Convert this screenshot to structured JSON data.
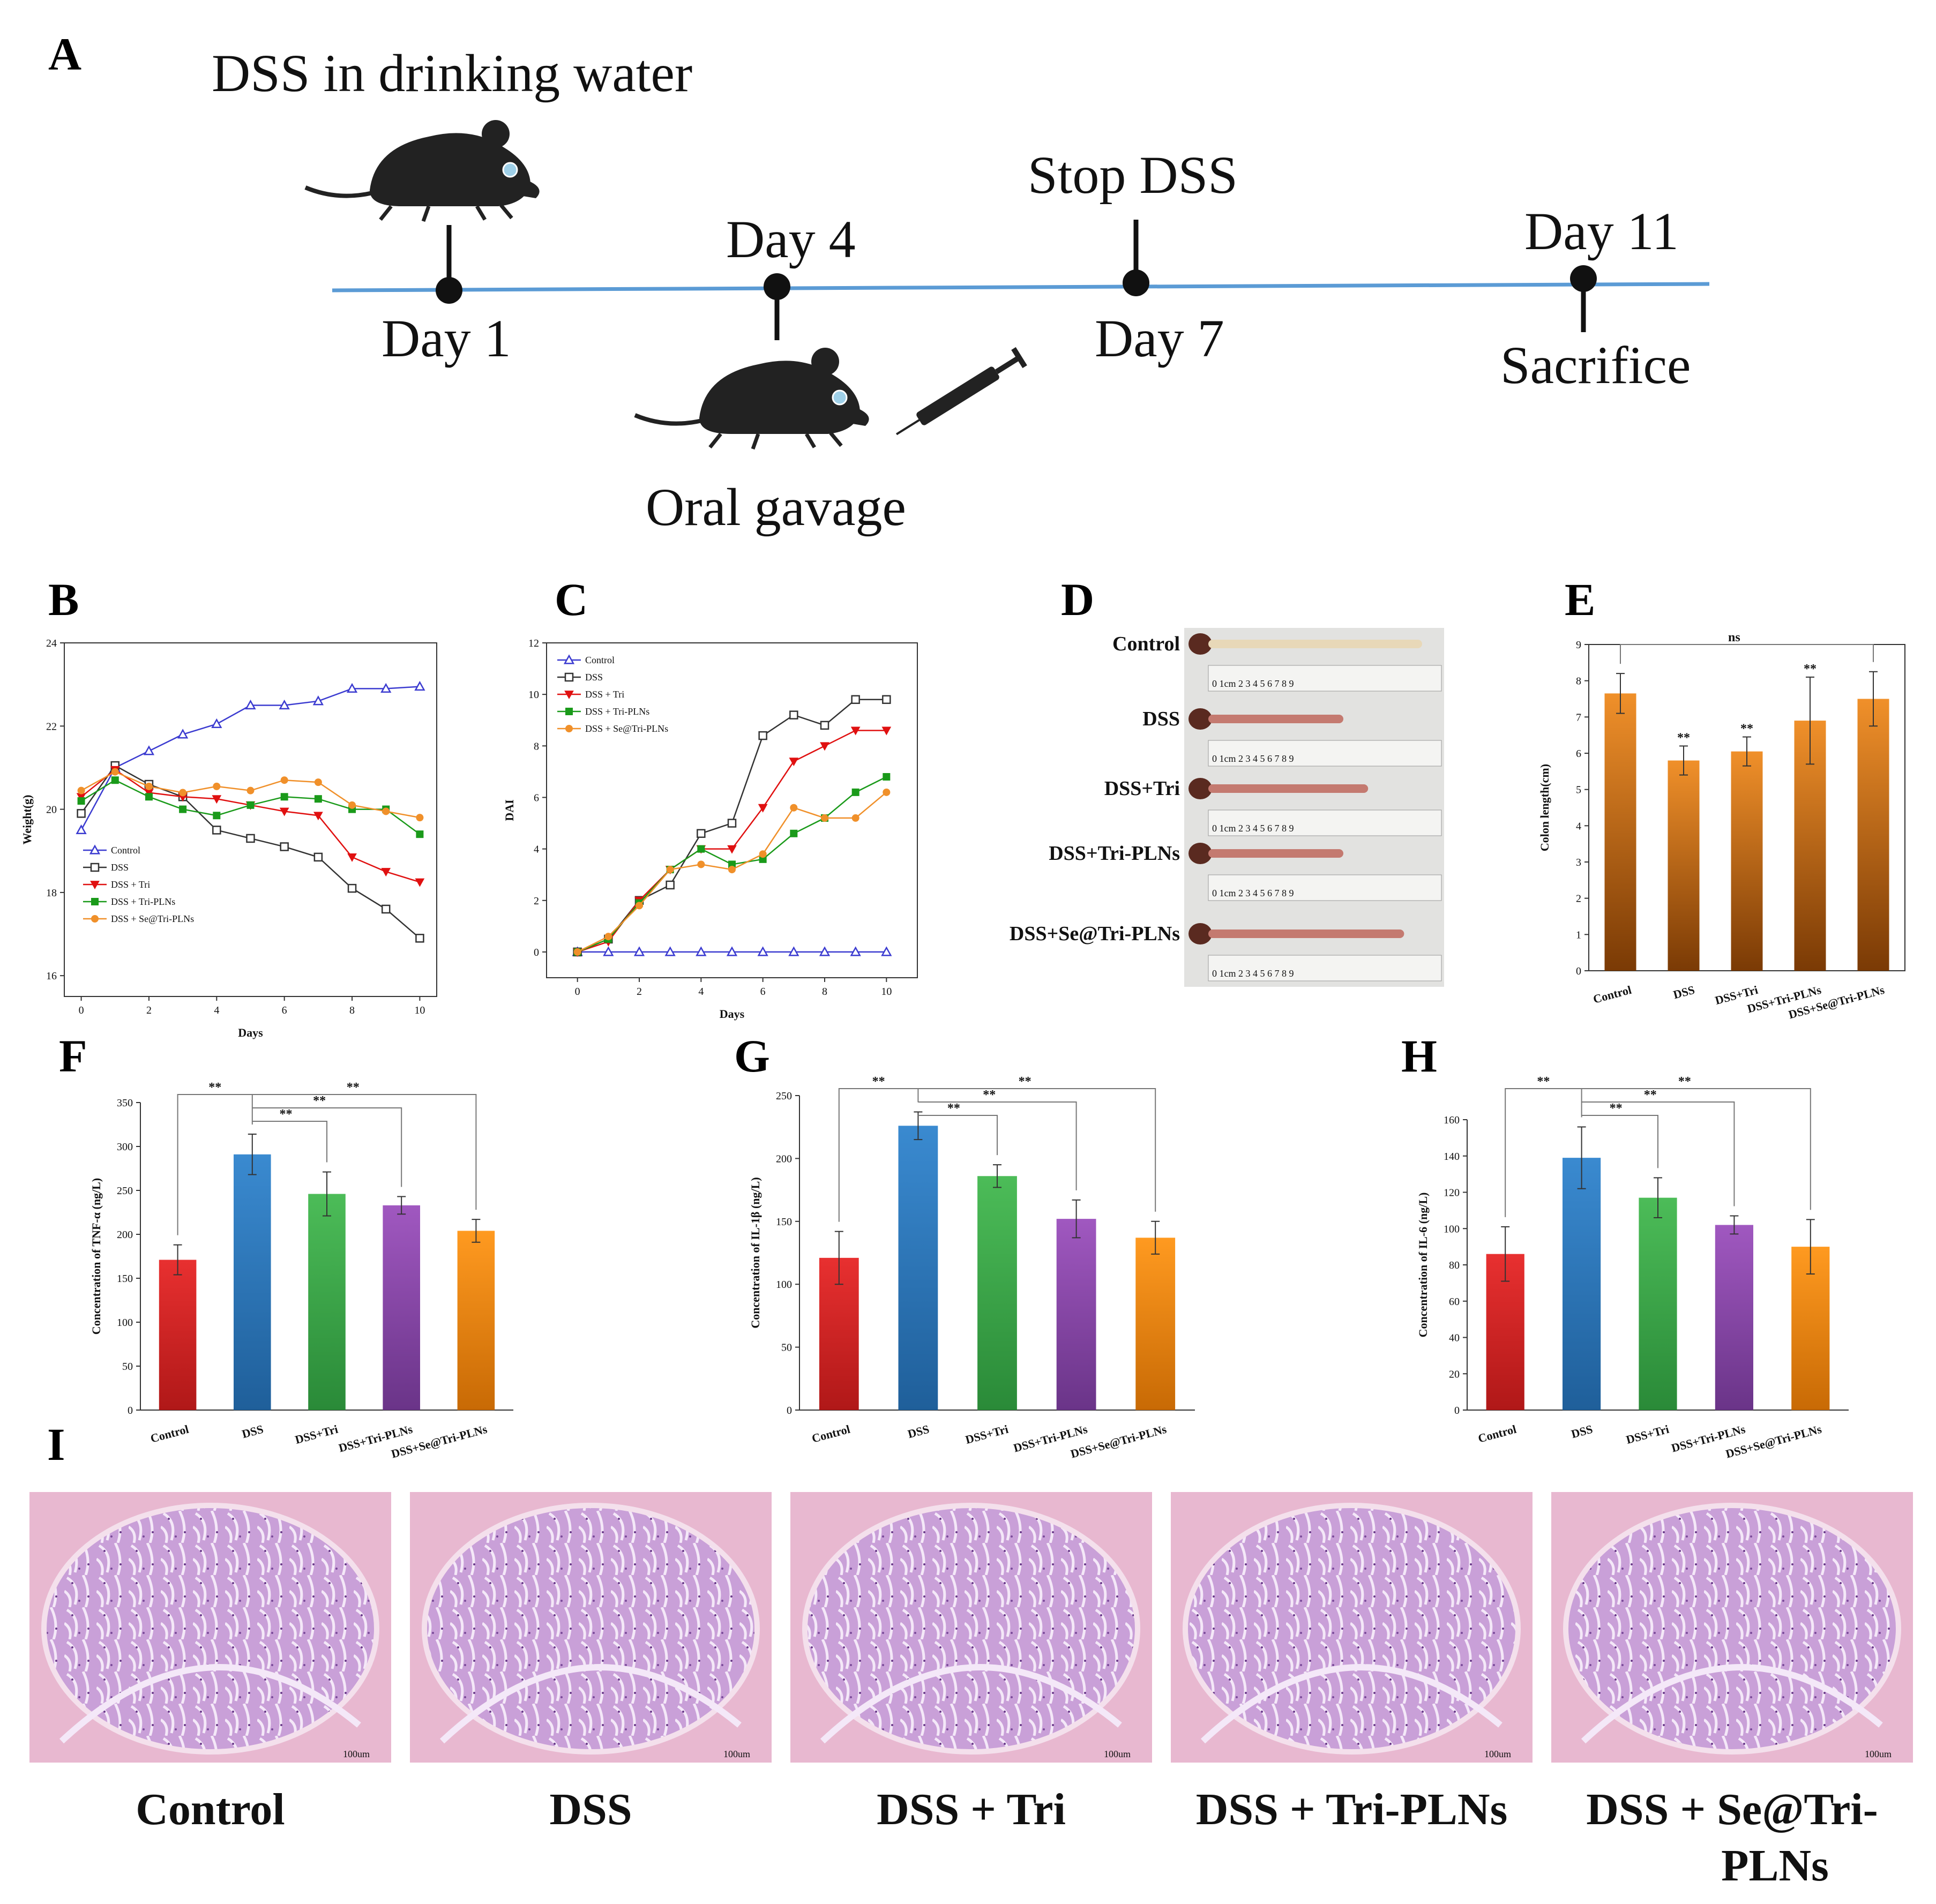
{
  "panel_labels": {
    "A": "A",
    "B": "B",
    "C": "C",
    "D": "D",
    "E": "E",
    "F": "F",
    "G": "G",
    "H": "H",
    "I": "I"
  },
  "colors": {
    "timeline": "#5b9bd5",
    "control_blue": "#3b3bd0",
    "dss_dark": "#333333",
    "tri_red": "#e01010",
    "plns_green": "#1a9a1a",
    "se_orange": "#f0902a",
    "bar_red": "#d42a2a",
    "bar_blue": "#2f7fc1",
    "bar_green": "#3aa84a",
    "bar_purple": "#8a4aa8",
    "bar_orange": "#f08a10",
    "bar_brown": "#b05a10"
  },
  "timeline": {
    "top_label": "DSS in drinking water",
    "stop_label": "Stop DSS",
    "day1": "Day 1",
    "day4": "Day 4",
    "day7": "Day 7",
    "day11": "Day 11",
    "sacrifice": "Sacrifice",
    "gavage": "Oral gavage"
  },
  "panel_D": {
    "groups": [
      "Control",
      "DSS",
      "DSS+Tri",
      "DSS+Tri-PLNs",
      "DSS+Se@Tri-PLNs"
    ],
    "colon_fraction": [
      0.95,
      0.6,
      0.71,
      0.6,
      0.87
    ],
    "ruler_text": "0 1cm 2 3 4 5 6 7 8 9"
  },
  "panel_I": {
    "groups": [
      "Control",
      "DSS",
      "DSS + Tri",
      "DSS + Tri-PLNs",
      "DSS + Se@Tri-\nPLNs"
    ],
    "label_line1": [
      "Control",
      "DSS",
      "DSS + Tri",
      "DSS + Tri-PLNs",
      "DSS + Se@Tri-"
    ],
    "label_line2": [
      "",
      "",
      "",
      "",
      "PLNs"
    ],
    "scale_text": "100um"
  },
  "chart_data": [
    {
      "id": "B",
      "type": "line",
      "xlabel": "Days",
      "ylabel": "Weight(g)",
      "xlim": [
        -0.5,
        10.5
      ],
      "ylim": [
        15.5,
        24
      ],
      "xticks": [
        0,
        2,
        4,
        6,
        8,
        10
      ],
      "yticks": [
        16,
        18,
        20,
        22,
        24
      ],
      "x": [
        0,
        1,
        2,
        3,
        4,
        5,
        6,
        7,
        8,
        9,
        10
      ],
      "series": [
        {
          "name": "Control",
          "color": "#3b3bd0",
          "marker": "triangle",
          "values": [
            19.5,
            21.0,
            21.4,
            21.8,
            22.05,
            22.5,
            22.5,
            22.6,
            22.9,
            22.9,
            22.95
          ]
        },
        {
          "name": "DSS",
          "color": "#333333",
          "marker": "square-open",
          "values": [
            19.9,
            21.05,
            20.6,
            20.3,
            19.5,
            19.3,
            19.1,
            18.85,
            18.1,
            17.6,
            16.9
          ]
        },
        {
          "name": "DSS + Tri",
          "color": "#e01010",
          "marker": "tri-down",
          "values": [
            20.3,
            20.95,
            20.4,
            20.3,
            20.25,
            20.1,
            19.95,
            19.85,
            18.85,
            18.5,
            18.25
          ]
        },
        {
          "name": "DSS + Tri-PLNs",
          "color": "#1a9a1a",
          "marker": "square",
          "values": [
            20.2,
            20.7,
            20.3,
            20.0,
            19.85,
            20.1,
            20.3,
            20.25,
            20.0,
            20.0,
            19.4
          ]
        },
        {
          "name": "DSS + Se@Tri-PLNs",
          "color": "#f0902a",
          "marker": "circle",
          "values": [
            20.45,
            20.9,
            20.55,
            20.4,
            20.55,
            20.45,
            20.7,
            20.65,
            20.1,
            19.95,
            19.8
          ]
        }
      ]
    },
    {
      "id": "C",
      "type": "line",
      "xlabel": "Days",
      "ylabel": "DAI",
      "xlim": [
        -1,
        11
      ],
      "ylim": [
        -1,
        12
      ],
      "xticks": [
        0,
        2,
        4,
        6,
        8,
        10
      ],
      "yticks": [
        0,
        2,
        4,
        6,
        8,
        10,
        12
      ],
      "x": [
        0,
        1,
        2,
        3,
        4,
        5,
        6,
        7,
        8,
        9,
        10
      ],
      "series": [
        {
          "name": "Control",
          "color": "#3b3bd0",
          "marker": "triangle",
          "values": [
            0,
            0,
            0,
            0,
            0,
            0,
            0,
            0,
            0,
            0,
            0
          ]
        },
        {
          "name": "DSS",
          "color": "#333333",
          "marker": "square-open",
          "values": [
            0,
            0.5,
            2.0,
            2.6,
            4.6,
            5.0,
            8.4,
            9.2,
            8.8,
            9.8,
            9.8
          ]
        },
        {
          "name": "DSS + Tri",
          "color": "#e01010",
          "marker": "tri-down",
          "values": [
            0,
            0.4,
            2.0,
            3.2,
            4.0,
            4.0,
            5.6,
            7.4,
            8.0,
            8.6,
            8.6
          ]
        },
        {
          "name": "DSS + Tri-PLNs",
          "color": "#1a9a1a",
          "marker": "square",
          "values": [
            0,
            0.5,
            1.9,
            3.2,
            4.0,
            3.4,
            3.6,
            4.6,
            5.2,
            6.2,
            6.8
          ]
        },
        {
          "name": "DSS + Se@Tri-PLNs",
          "color": "#f0902a",
          "marker": "circle",
          "values": [
            0,
            0.6,
            1.8,
            3.2,
            3.4,
            3.2,
            3.8,
            5.6,
            5.2,
            5.2,
            6.2
          ]
        }
      ]
    },
    {
      "id": "E",
      "type": "bar",
      "ylabel": "Colon length(cm)",
      "ylim": [
        0,
        9
      ],
      "yticks": [
        0,
        1,
        2,
        3,
        4,
        5,
        6,
        7,
        8,
        9
      ],
      "categories": [
        "Control",
        "DSS",
        "DSS+Tri",
        "DSS+Tri-PLNs",
        "DSS+Se@Tri-PLNs"
      ],
      "values": [
        7.65,
        5.8,
        6.05,
        6.9,
        7.5
      ],
      "errors": [
        0.55,
        0.4,
        0.4,
        1.2,
        0.75
      ],
      "marks": [
        "",
        "**",
        "**",
        "**",
        ""
      ],
      "brackets": [
        {
          "from": 0,
          "to": 4,
          "label": "ns"
        }
      ]
    },
    {
      "id": "F",
      "type": "bar",
      "ylabel": "Concentration of TNF-α (ng/L)",
      "ylim": [
        0,
        350
      ],
      "yticks": [
        0,
        50,
        100,
        150,
        200,
        250,
        300,
        350
      ],
      "categories": [
        "Control",
        "DSS",
        "DSS+Tri",
        "DSS+Tri-PLNs",
        "DSS+Se@Tri-PLNs"
      ],
      "values": [
        171,
        291,
        246,
        233,
        204
      ],
      "errors": [
        17,
        23,
        25,
        10,
        13
      ],
      "colors": [
        "#d42a2a",
        "#2f7fc1",
        "#3aa84a",
        "#8a4aa8",
        "#f08a10"
      ],
      "brackets": [
        {
          "from": 0,
          "to": 1,
          "label": "**"
        },
        {
          "from": 1,
          "to": 2,
          "label": "**"
        },
        {
          "from": 1,
          "to": 3,
          "label": "**"
        },
        {
          "from": 1,
          "to": 4,
          "label": "**"
        }
      ]
    },
    {
      "id": "G",
      "type": "bar",
      "ylabel": "Concentration of IL-1β (ng/L)",
      "ylim": [
        0,
        250
      ],
      "yticks": [
        0,
        50,
        100,
        150,
        200,
        250
      ],
      "categories": [
        "Control",
        "DSS",
        "DSS+Tri",
        "DSS+Tri-PLNs",
        "DSS+Se@Tri-PLNs"
      ],
      "values": [
        121,
        226,
        186,
        152,
        137
      ],
      "errors": [
        21,
        11,
        9,
        15,
        13
      ],
      "colors": [
        "#d42a2a",
        "#2f7fc1",
        "#3aa84a",
        "#8a4aa8",
        "#f08a10"
      ],
      "brackets": [
        {
          "from": 0,
          "to": 1,
          "label": "**"
        },
        {
          "from": 1,
          "to": 2,
          "label": "**"
        },
        {
          "from": 1,
          "to": 3,
          "label": "**"
        },
        {
          "from": 1,
          "to": 4,
          "label": "**"
        }
      ]
    },
    {
      "id": "H",
      "type": "bar",
      "ylabel": "Concentration of IL-6 (ng/L)",
      "ylim": [
        0,
        160
      ],
      "yticks": [
        0,
        20,
        40,
        60,
        80,
        100,
        120,
        140,
        160
      ],
      "categories": [
        "Control",
        "DSS",
        "DSS+Tri",
        "DSS+Tri-PLNs",
        "DSS+Se@Tri-PLNs"
      ],
      "values": [
        86,
        139,
        117,
        102,
        90
      ],
      "errors": [
        15,
        17,
        11,
        5,
        15
      ],
      "colors": [
        "#d42a2a",
        "#2f7fc1",
        "#3aa84a",
        "#8a4aa8",
        "#f08a10"
      ],
      "brackets": [
        {
          "from": 0,
          "to": 1,
          "label": "**"
        },
        {
          "from": 1,
          "to": 2,
          "label": "**"
        },
        {
          "from": 1,
          "to": 3,
          "label": "**"
        },
        {
          "from": 1,
          "to": 4,
          "label": "**"
        }
      ]
    }
  ]
}
